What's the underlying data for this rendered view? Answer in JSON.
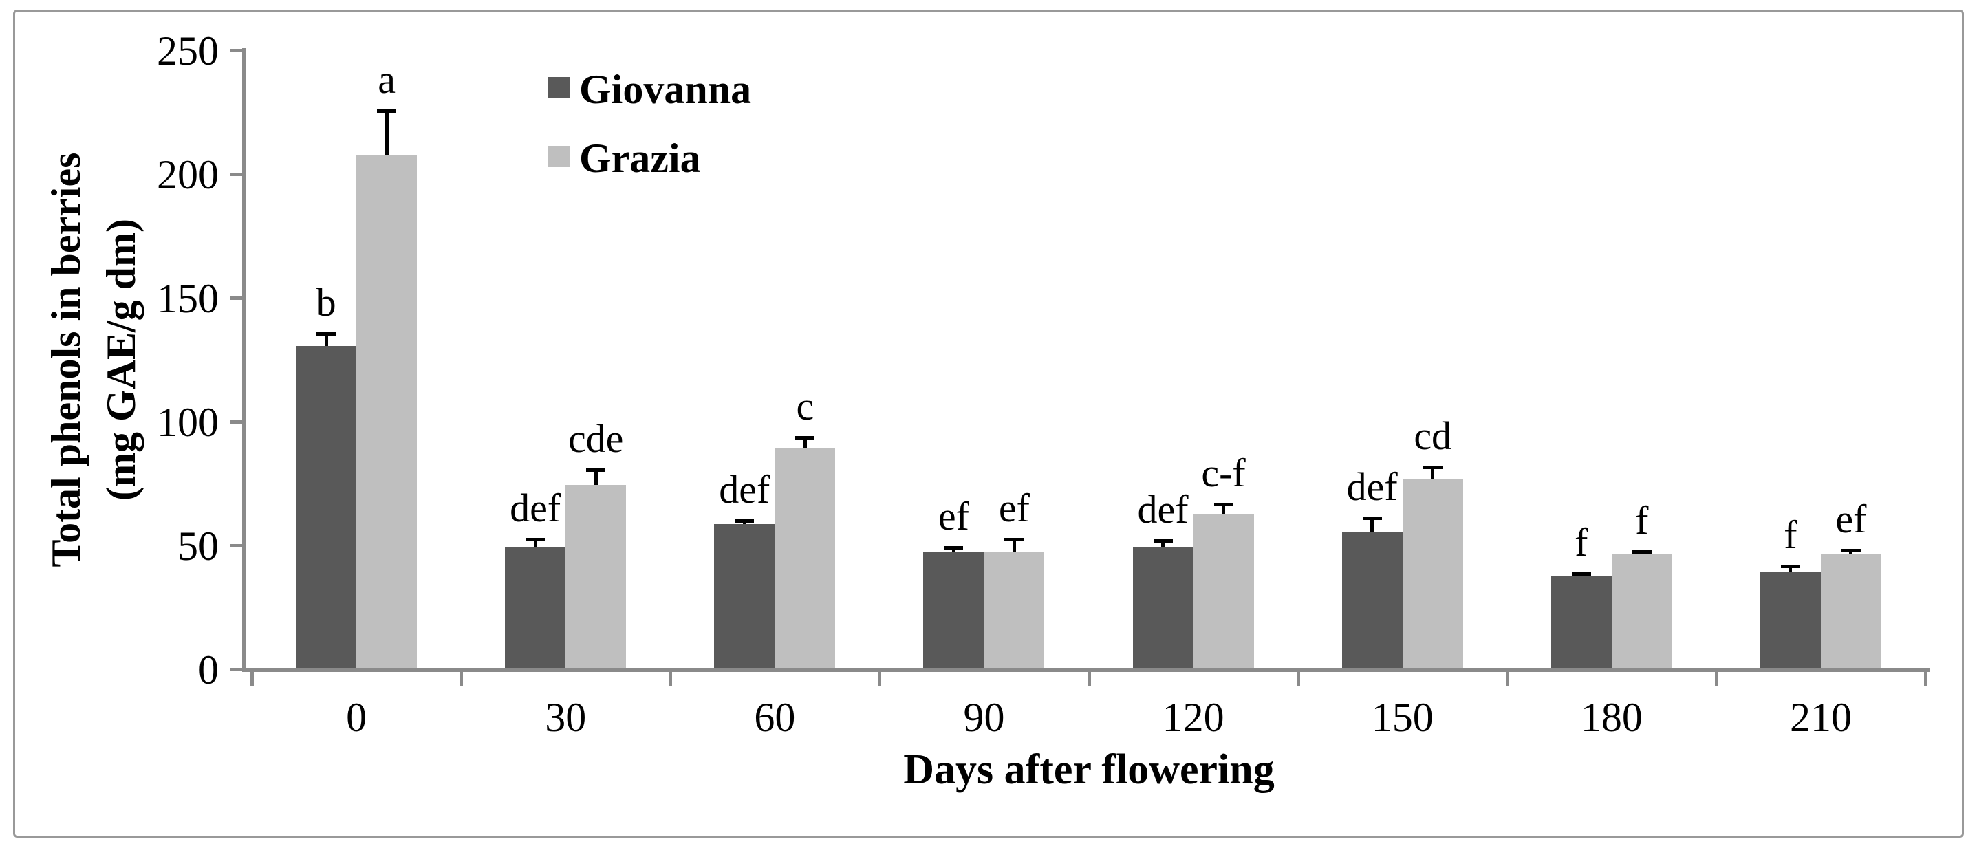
{
  "figure": {
    "background": "#ffffff",
    "border_color": "#999999"
  },
  "chart_data": {
    "type": "bar",
    "title": "",
    "xlabel": "Days after flowering",
    "ylabel_line1": "Total phenols in berries",
    "ylabel_line2": "(mg GAE/g dm)",
    "categories": [
      "0",
      "30",
      "60",
      "90",
      "120",
      "150",
      "180",
      "210"
    ],
    "series": [
      {
        "name": "Giovanna",
        "color": "#595959",
        "values": [
          130,
          49,
          58,
          47,
          49,
          55,
          37,
          39
        ],
        "errors": [
          5,
          3,
          1.5,
          1.5,
          2.5,
          5.5,
          1,
          2
        ],
        "letters": [
          "b",
          "def",
          "def",
          "ef",
          "def",
          "def",
          "f",
          "f"
        ]
      },
      {
        "name": "Grazia",
        "color": "#bfbfbf",
        "values": [
          207,
          74,
          89,
          47,
          62,
          76,
          46,
          46
        ],
        "errors": [
          18,
          6,
          4,
          5,
          4,
          5,
          1,
          1.5
        ],
        "letters": [
          "a",
          "cde",
          "c",
          "ef",
          "c-f",
          "cd",
          "f",
          "ef"
        ]
      }
    ],
    "ylim": [
      0,
      250
    ],
    "yticks": [
      0,
      50,
      100,
      150,
      200,
      250
    ],
    "grid": false,
    "legend_position": "upper-left-inside",
    "axis_color": "#8a8a8a",
    "error_bar_color": "#000000"
  }
}
